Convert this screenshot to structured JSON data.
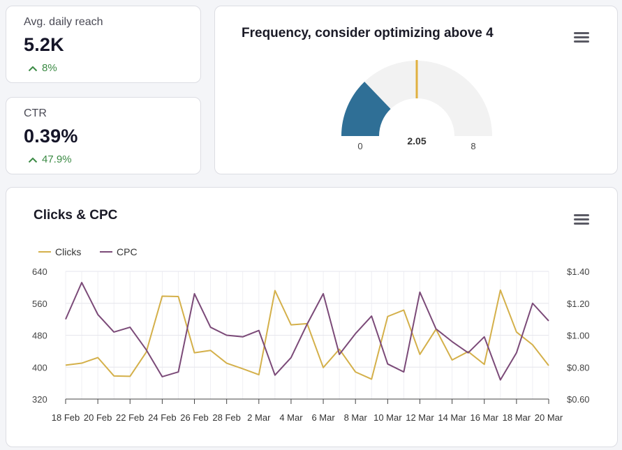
{
  "kpis": {
    "reach": {
      "label": "Avg. daily reach",
      "value": "5.2K",
      "delta": "8%"
    },
    "ctr": {
      "label": "CTR",
      "value": "0.39%",
      "delta": "47.9%"
    }
  },
  "colors": {
    "positive": "#3b8a44",
    "gauge_fill": "#2f6f96",
    "gauge_bg": "#f2f2f2",
    "gauge_marker": "#e0b040",
    "clicks": "#d4b04a",
    "cpc": "#7b4a78"
  },
  "gauge": {
    "title": "Frequency, consider optimizing above 4",
    "min": 0,
    "max": 8,
    "value": 2.05,
    "target": 4,
    "min_label": "0",
    "max_label": "8",
    "value_label": "2.05"
  },
  "line_chart": {
    "title": "Clicks & CPC"
  },
  "chart_data": {
    "type": "line",
    "title": "Clicks & CPC",
    "x": [
      "18 Feb",
      "19 Feb",
      "20 Feb",
      "21 Feb",
      "22 Feb",
      "23 Feb",
      "24 Feb",
      "25 Feb",
      "26 Feb",
      "27 Feb",
      "28 Feb",
      "1 Mar",
      "2 Mar",
      "3 Mar",
      "4 Mar",
      "5 Mar",
      "6 Mar",
      "7 Mar",
      "8 Mar",
      "9 Mar",
      "10 Mar",
      "11 Mar",
      "12 Mar",
      "13 Mar",
      "14 Mar",
      "15 Mar",
      "16 Mar",
      "17 Mar",
      "18 Mar",
      "19 Mar",
      "20 Mar"
    ],
    "x_tick_labels": [
      "18 Feb",
      "20 Feb",
      "22 Feb",
      "24 Feb",
      "26 Feb",
      "28 Feb",
      "2 Mar",
      "4 Mar",
      "6 Mar",
      "8 Mar",
      "10 Mar",
      "12 Mar",
      "14 Mar",
      "16 Mar",
      "18 Mar",
      "20 Mar"
    ],
    "series": [
      {
        "name": "Clicks",
        "axis": "left",
        "values": [
          405,
          410,
          424,
          378,
          377,
          437,
          578,
          577,
          436,
          442,
          410,
          396,
          381,
          592,
          506,
          509,
          399,
          445,
          388,
          370,
          527,
          543,
          432,
          495,
          418,
          439,
          407,
          593,
          488,
          456,
          404
        ]
      },
      {
        "name": "CPC",
        "axis": "right",
        "values": [
          1.1,
          1.33,
          1.13,
          1.02,
          1.05,
          0.91,
          0.74,
          0.77,
          1.26,
          1.05,
          1.0,
          0.99,
          1.03,
          0.75,
          0.86,
          1.07,
          1.26,
          0.88,
          1.01,
          1.12,
          0.82,
          0.77,
          1.27,
          1.04,
          0.96,
          0.89,
          0.99,
          0.72,
          0.89,
          1.2,
          1.09
        ]
      }
    ],
    "y_left": {
      "min": 320,
      "max": 640,
      "ticks": [
        "320",
        "400",
        "480",
        "560",
        "640"
      ]
    },
    "y_right": {
      "min": 0.6,
      "max": 1.4,
      "ticks": [
        "$0.60",
        "$0.80",
        "$1.00",
        "$1.20",
        "$1.40"
      ]
    },
    "grid": true,
    "legend": "top-left"
  }
}
